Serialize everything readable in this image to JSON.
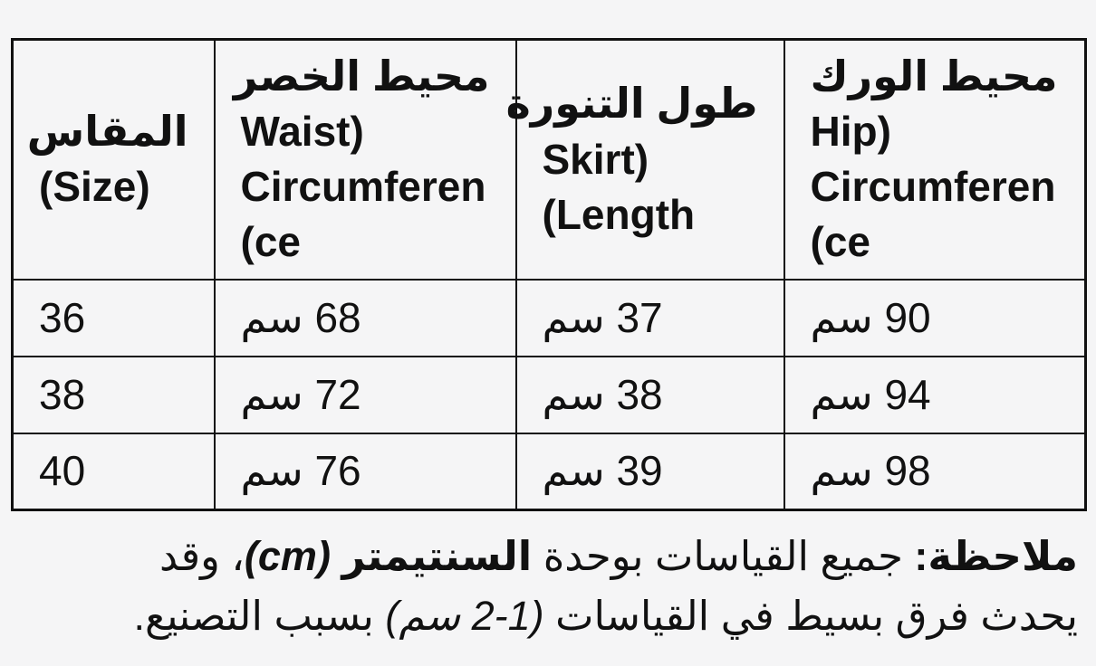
{
  "table": {
    "headers": [
      "المقاس\n(Size)",
      "محيط الخصر\n(Waist\nCircumferen\nce)",
      "طول التنورة\n(Skirt\nLength)",
      "محيط الورك\n(Hip\nCircumferen\nce)"
    ],
    "rows": [
      [
        "36",
        "68 سم",
        "37 سم",
        "90 سم"
      ],
      [
        "38",
        "72 سم",
        "38 سم",
        "94 سم"
      ],
      [
        "40",
        "76 سم",
        "39 سم",
        "98 سم"
      ]
    ]
  },
  "note": {
    "label": "ملاحظة:",
    "intro": " جميع القياسات بوحدة ",
    "unit_word": "السنتيمتر",
    "unit_symbol": " (cm)",
    "middle": "، وقد\nيحدث فرق بسيط في القياسات ",
    "range": "(1-2 سم)",
    "ending": " بسبب التصنيع."
  }
}
